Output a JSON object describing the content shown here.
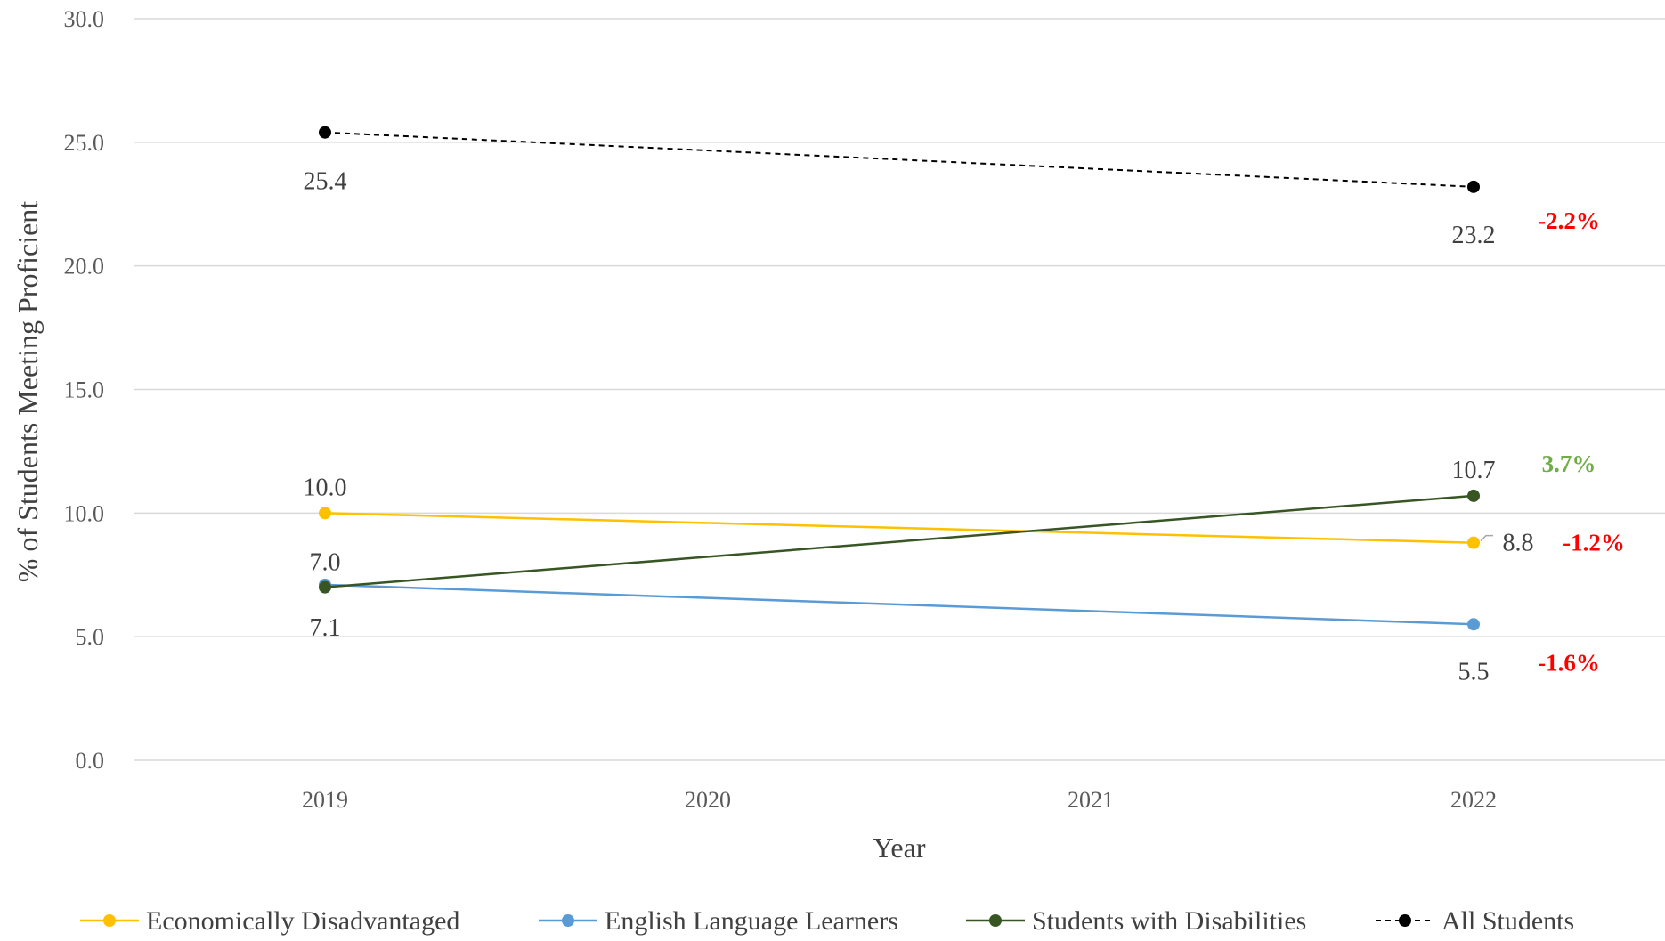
{
  "chart_data": {
    "type": "line",
    "title": "",
    "xlabel": "Year",
    "ylabel": "% of Students Meeting Proficient",
    "x": [
      "2019",
      "2020",
      "2021",
      "2022"
    ],
    "ylim": [
      0,
      30
    ],
    "y_ticks": [
      "0.0",
      "5.0",
      "10.0",
      "15.0",
      "20.0",
      "25.0",
      "30.0"
    ],
    "grid": "horizontal",
    "legend_position": "bottom",
    "series": [
      {
        "name": "Economically Disadvantaged",
        "color": "#FFC000",
        "dashed": false,
        "points": [
          {
            "x": "2019",
            "y": 10.0
          },
          {
            "x": "2022",
            "y": 8.8
          }
        ],
        "labels": [
          "10.0",
          "8.8"
        ],
        "change": "-1.2%",
        "change_color": "#FF0000"
      },
      {
        "name": "English Language Learners",
        "color": "#5B9BD5",
        "dashed": false,
        "points": [
          {
            "x": "2019",
            "y": 7.1
          },
          {
            "x": "2022",
            "y": 5.5
          }
        ],
        "labels": [
          "7.1",
          "5.5"
        ],
        "change": "-1.6%",
        "change_color": "#FF0000"
      },
      {
        "name": "Students with Disabilities",
        "color": "#375623",
        "dashed": false,
        "points": [
          {
            "x": "2019",
            "y": 7.0
          },
          {
            "x": "2022",
            "y": 10.7
          }
        ],
        "labels": [
          "7.0",
          "10.7"
        ],
        "change": "3.7%",
        "change_color": "#70AD47"
      },
      {
        "name": "All Students",
        "color": "#000000",
        "dashed": true,
        "points": [
          {
            "x": "2019",
            "y": 25.4
          },
          {
            "x": "2022",
            "y": 23.2
          }
        ],
        "labels": [
          "25.4",
          "23.2"
        ],
        "change": "-2.2%",
        "change_color": "#FF0000"
      }
    ]
  }
}
